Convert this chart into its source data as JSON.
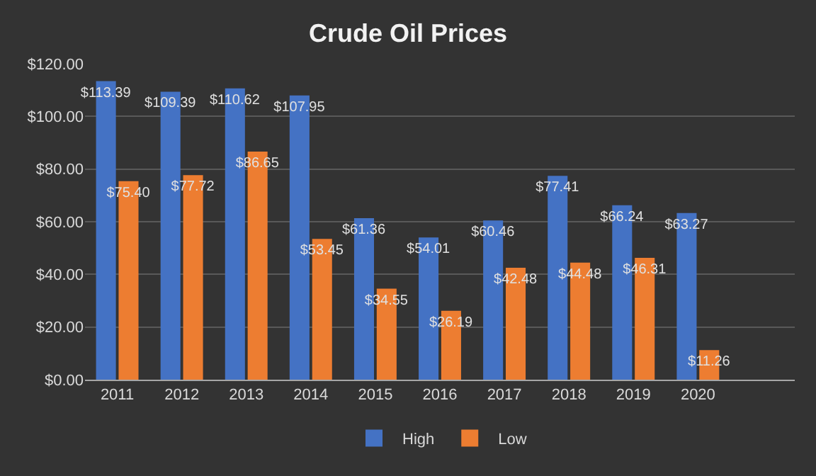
{
  "chart_data": {
    "type": "bar",
    "title": "Crude Oil Prices",
    "categories": [
      "2011",
      "2012",
      "2013",
      "2014",
      "2015",
      "2016",
      "2017",
      "2018",
      "2019",
      "2020",
      null
    ],
    "series": [
      {
        "name": "High",
        "color": "#4472c4",
        "values": [
          113.39,
          109.39,
          110.62,
          107.95,
          61.36,
          54.01,
          60.46,
          77.41,
          66.24,
          63.27,
          null
        ],
        "value_labels": [
          "$113.39",
          "$109.39",
          "$110.62",
          "$107.95",
          "$61.36",
          "$54.01",
          "$60.46",
          "$77.41",
          "$66.24",
          "$63.27",
          null
        ]
      },
      {
        "name": "Low",
        "color": "#ed7d31",
        "values": [
          75.4,
          77.72,
          86.65,
          53.45,
          34.55,
          26.19,
          42.48,
          44.48,
          46.31,
          11.26,
          null
        ],
        "value_labels": [
          "$75.40",
          "$77.72",
          "$86.65",
          "$53.45",
          "$34.55",
          "$26.19",
          "$42.48",
          "$44.48",
          "$46.31",
          "$11.26",
          null
        ]
      }
    ],
    "ylim": [
      0,
      120
    ],
    "yticks": [
      {
        "value": 0,
        "label": "$0.00"
      },
      {
        "value": 20,
        "label": "$20.00"
      },
      {
        "value": 40,
        "label": "$40.00"
      },
      {
        "value": 60,
        "label": "$60.00"
      },
      {
        "value": 80,
        "label": "$80.00"
      },
      {
        "value": 100,
        "label": "$100.00"
      },
      {
        "value": 120,
        "label": "$120.00"
      }
    ],
    "grid": "y",
    "legend": "bottom"
  }
}
